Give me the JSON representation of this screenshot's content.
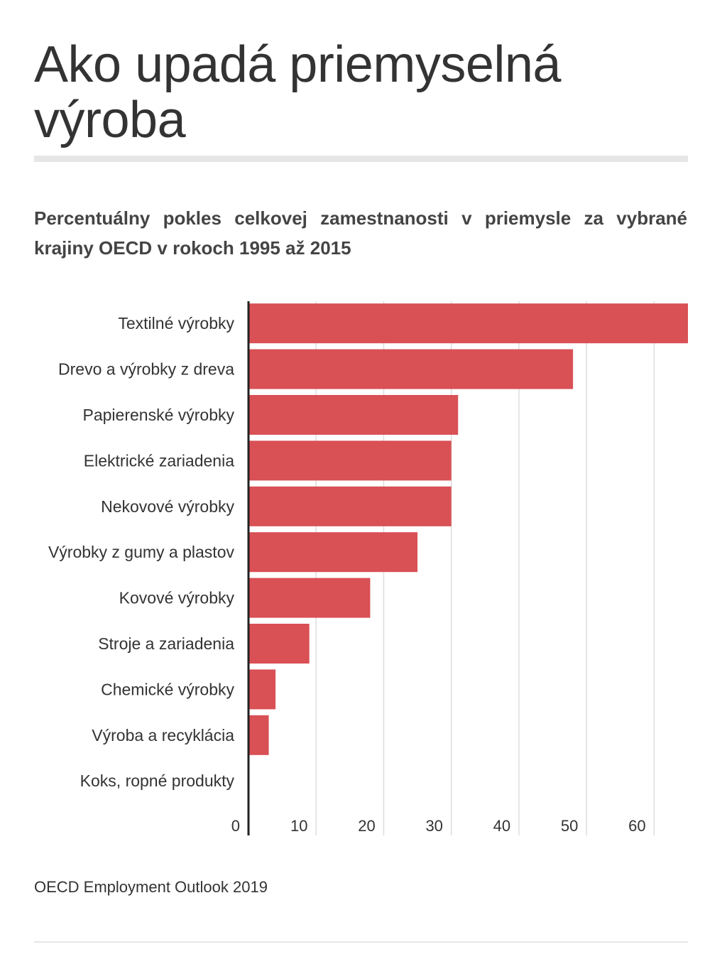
{
  "title": "Ako upadá priemyselná výroba",
  "subtitle": "Percentuálny pokles celkovej zamestnanosti v priemysle za vybrané krajiny OECD v rokoch 1995 až 2015",
  "source": "OECD Employment Outlook 2019",
  "colors": {
    "bar": "#d95055",
    "grid": "#dddddd",
    "axis": "#222222"
  },
  "chart_data": {
    "type": "bar",
    "orientation": "horizontal",
    "categories": [
      "Textilné výrobky",
      "Drevo a výrobky z dreva",
      "Papierenské výrobky",
      "Elektrické zariadenia",
      "Nekovové výrobky",
      "Výrobky z gumy a plastov",
      "Kovové výrobky",
      "Stroje a zariadenia",
      "Chemické výrobky",
      "Výroba a recyklácia",
      "Koks, ropné produkty"
    ],
    "values": [
      65,
      48,
      31,
      30,
      30,
      25,
      18,
      9,
      4,
      3,
      0
    ],
    "xlim": [
      0,
      65
    ],
    "xticks": [
      0,
      10,
      20,
      30,
      40,
      50,
      60
    ],
    "grid": true
  }
}
